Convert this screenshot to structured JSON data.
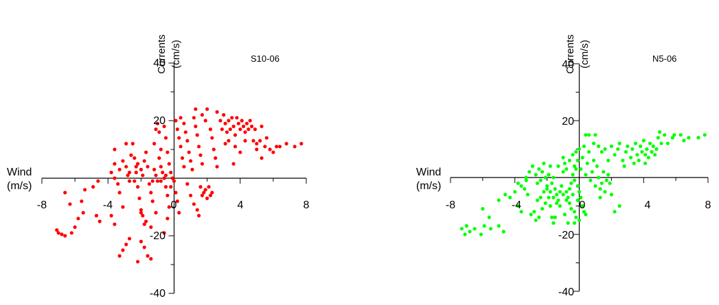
{
  "chart_data": [
    {
      "type": "scatter",
      "title": "S10-06",
      "xlabel": [
        "Wind",
        "(m/s)"
      ],
      "ylabel": [
        "Currents",
        "(cm/s)"
      ],
      "xlim": [
        -8,
        8
      ],
      "ylim": [
        -40,
        40
      ],
      "xticks": [
        "-8",
        "-4",
        "0",
        "4",
        "8"
      ],
      "yticks": [
        "40",
        "20",
        "-20",
        "-40"
      ],
      "color": "#ff0000",
      "points": [
        [
          -7.1,
          -18
        ],
        [
          -7.0,
          -19
        ],
        [
          -6.8,
          -19.5
        ],
        [
          -6.6,
          -20
        ],
        [
          -6.2,
          -19
        ],
        [
          -6.0,
          -17
        ],
        [
          -5.8,
          -14
        ],
        [
          -5.5,
          -12
        ],
        [
          -5.6,
          -8
        ],
        [
          -6.3,
          -9
        ],
        [
          -6.6,
          -5
        ],
        [
          -5.4,
          -4
        ],
        [
          -4.9,
          -3
        ],
        [
          -4.6,
          -1
        ],
        [
          -4.7,
          -13
        ],
        [
          -4.5,
          -15
        ],
        [
          -3.8,
          -13
        ],
        [
          -3.6,
          -16
        ],
        [
          -3.8,
          2
        ],
        [
          -3.6,
          0
        ],
        [
          -3.4,
          -2
        ],
        [
          -3.3,
          -5
        ],
        [
          -3.1,
          -10
        ],
        [
          -3.3,
          -27
        ],
        [
          -3.1,
          -25
        ],
        [
          -2.9,
          -23
        ],
        [
          -2.7,
          -21
        ],
        [
          -3.6,
          10
        ],
        [
          -3.6,
          5
        ],
        [
          -3.3,
          3
        ],
        [
          -3.1,
          6
        ],
        [
          -2.9,
          4
        ],
        [
          -2.8,
          1
        ],
        [
          -2.7,
          -1
        ],
        [
          -2.6,
          8
        ],
        [
          -2.5,
          12
        ],
        [
          -2.4,
          7
        ],
        [
          -2.3,
          4
        ],
        [
          -2.2,
          -3
        ],
        [
          -2.1,
          -7
        ],
        [
          -2.0,
          -11
        ],
        [
          -1.9,
          -13
        ],
        [
          -1.8,
          -16
        ],
        [
          -1.7,
          -15
        ],
        [
          -2.0,
          -22
        ],
        [
          -1.8,
          -24
        ],
        [
          -1.6,
          -27
        ],
        [
          -1.4,
          -28
        ],
        [
          -2.2,
          -29
        ],
        [
          -2.0,
          -12
        ],
        [
          -2.9,
          12
        ],
        [
          -2.7,
          2
        ],
        [
          -2.4,
          -1
        ],
        [
          -2.3,
          2
        ],
        [
          -2.2,
          5
        ],
        [
          -2.0,
          3
        ],
        [
          -1.9,
          1
        ],
        [
          -1.8,
          6
        ],
        [
          -1.7,
          9
        ],
        [
          -1.6,
          4
        ],
        [
          -1.5,
          -2
        ],
        [
          -1.4,
          -5
        ],
        [
          -1.3,
          -8
        ],
        [
          -1.2,
          12
        ],
        [
          -1.1,
          17
        ],
        [
          -1.0,
          19
        ],
        [
          -0.9,
          16
        ],
        [
          -1.2,
          3
        ],
        [
          -1.1,
          1
        ],
        [
          -1.0,
          -1
        ],
        [
          -0.9,
          7
        ],
        [
          -0.8,
          4
        ],
        [
          -0.7,
          2
        ],
        [
          -0.6,
          0
        ],
        [
          -0.5,
          -3
        ],
        [
          -0.4,
          -6
        ],
        [
          -0.3,
          -10
        ],
        [
          -0.4,
          -14
        ],
        [
          -0.6,
          -19
        ],
        [
          -1.1,
          -12
        ],
        [
          -1.4,
          -17
        ],
        [
          -0.8,
          10
        ],
        [
          -0.6,
          18
        ],
        [
          -0.5,
          14
        ],
        [
          -0.4,
          9
        ],
        [
          -0.3,
          5
        ],
        [
          -0.2,
          2
        ],
        [
          -0.1,
          0
        ],
        [
          0.0,
          -1
        ],
        [
          -0.2,
          -3
        ],
        [
          -0.5,
          1
        ],
        [
          -0.8,
          -1
        ],
        [
          -1.3,
          -1
        ],
        [
          0.1,
          20
        ],
        [
          0.2,
          17
        ],
        [
          0.3,
          14
        ],
        [
          0.4,
          11
        ],
        [
          0.5,
          7
        ],
        [
          0.6,
          4
        ],
        [
          0.1,
          -5
        ],
        [
          0.2,
          -8
        ],
        [
          0.3,
          -12
        ],
        [
          0.4,
          21
        ],
        [
          0.6,
          19
        ],
        [
          0.7,
          16
        ],
        [
          0.8,
          13
        ],
        [
          0.9,
          9
        ],
        [
          1.0,
          6
        ],
        [
          1.1,
          3
        ],
        [
          1.2,
          21
        ],
        [
          1.3,
          18
        ],
        [
          1.4,
          15
        ],
        [
          1.5,
          11
        ],
        [
          1.6,
          8
        ],
        [
          1.7,
          5
        ],
        [
          0.8,
          -2
        ],
        [
          1.0,
          -6
        ],
        [
          1.2,
          -9
        ],
        [
          1.5,
          -13
        ],
        [
          1.4,
          -11
        ],
        [
          1.6,
          -3
        ],
        [
          1.8,
          -5
        ],
        [
          1.3,
          24
        ],
        [
          1.7,
          22
        ],
        [
          1.9,
          20
        ],
        [
          2.0,
          24
        ],
        [
          2.2,
          17
        ],
        [
          2.3,
          14
        ],
        [
          2.4,
          10
        ],
        [
          2.5,
          7
        ],
        [
          2.6,
          4
        ],
        [
          2.2,
          -6
        ],
        [
          2.0,
          -7
        ],
        [
          2.3,
          -5
        ],
        [
          2.1,
          -3
        ],
        [
          1.9,
          -4
        ],
        [
          1.7,
          -6
        ],
        [
          2.6,
          23
        ],
        [
          2.8,
          20
        ],
        [
          2.9,
          17
        ],
        [
          3.0,
          22
        ],
        [
          3.1,
          19
        ],
        [
          3.2,
          16
        ],
        [
          3.3,
          20
        ],
        [
          3.4,
          17
        ],
        [
          3.5,
          21
        ],
        [
          3.6,
          18
        ],
        [
          3.7,
          15
        ],
        [
          3.8,
          21
        ],
        [
          3.9,
          19
        ],
        [
          4.0,
          17
        ],
        [
          4.1,
          20
        ],
        [
          4.2,
          18
        ],
        [
          4.3,
          16
        ],
        [
          4.4,
          19
        ],
        [
          4.5,
          17
        ],
        [
          4.6,
          20
        ],
        [
          4.7,
          18
        ],
        [
          3.3,
          13
        ],
        [
          3.7,
          11
        ],
        [
          3.1,
          12
        ],
        [
          3.6,
          5
        ],
        [
          4.0,
          9
        ],
        [
          4.3,
          13
        ],
        [
          4.9,
          17
        ],
        [
          5.0,
          12
        ],
        [
          5.3,
          18
        ],
        [
          5.0,
          10
        ],
        [
          5.3,
          7
        ],
        [
          5.2,
          13
        ],
        [
          5.6,
          14
        ],
        [
          5.8,
          10
        ],
        [
          6.0,
          9
        ],
        [
          6.2,
          11
        ],
        [
          6.4,
          11
        ],
        [
          6.8,
          12
        ],
        [
          7.3,
          11
        ],
        [
          7.7,
          12
        ],
        [
          5.5,
          11
        ],
        [
          4.8,
          13
        ]
      ]
    },
    {
      "type": "scatter",
      "title": "N5-06",
      "xlabel": [
        "Wind",
        "(m/s)"
      ],
      "ylabel": [
        "Currents",
        "(cm/s)"
      ],
      "xlim": [
        -8,
        8
      ],
      "ylim": [
        -40,
        40
      ],
      "xticks": [
        "-8",
        "-4",
        "0",
        "4",
        "8"
      ],
      "yticks": [
        "40",
        "20",
        "-20",
        "-40"
      ],
      "color": "#00ff00",
      "points": [
        [
          -7.3,
          -18
        ],
        [
          -7.1,
          -20
        ],
        [
          -7.0,
          -17
        ],
        [
          -6.8,
          -19
        ],
        [
          -6.5,
          -18
        ],
        [
          -6.1,
          -20
        ],
        [
          -5.9,
          -17
        ],
        [
          -5.5,
          -18
        ],
        [
          -5.0,
          -17
        ],
        [
          -4.7,
          -19
        ],
        [
          -5.6,
          -14
        ],
        [
          -6.0,
          -11
        ],
        [
          -5.0,
          -8
        ],
        [
          -4.6,
          -6
        ],
        [
          -4.3,
          -7
        ],
        [
          -4.0,
          -5
        ],
        [
          -3.8,
          -10
        ],
        [
          -3.6,
          -12
        ],
        [
          -3.8,
          -2
        ],
        [
          -3.6,
          -3
        ],
        [
          -3.4,
          -4
        ],
        [
          -3.3,
          0
        ],
        [
          -3.2,
          -6
        ],
        [
          -3.0,
          -13
        ],
        [
          -2.8,
          -12
        ],
        [
          -2.7,
          -15
        ],
        [
          -2.5,
          -14
        ],
        [
          -2.6,
          -8
        ],
        [
          -2.4,
          -7
        ],
        [
          -2.3,
          -11
        ],
        [
          -2.2,
          -5
        ],
        [
          -2.1,
          -9
        ],
        [
          -2.0,
          -3
        ],
        [
          -1.9,
          -7
        ],
        [
          -1.8,
          -10
        ],
        [
          -1.7,
          -14
        ],
        [
          -1.6,
          -16
        ],
        [
          -3.3,
          -1
        ],
        [
          -3.1,
          2
        ],
        [
          -2.9,
          4
        ],
        [
          -2.7,
          1
        ],
        [
          -2.6,
          -2
        ],
        [
          -2.5,
          3
        ],
        [
          -2.4,
          -1
        ],
        [
          -2.3,
          2
        ],
        [
          -2.2,
          5
        ],
        [
          -2.1,
          0
        ],
        [
          -2.0,
          -4
        ],
        [
          -1.9,
          1
        ],
        [
          -1.8,
          4
        ],
        [
          -1.7,
          -2
        ],
        [
          -1.6,
          0
        ],
        [
          -1.5,
          -4
        ],
        [
          -1.4,
          -6
        ],
        [
          -1.3,
          -8
        ],
        [
          -1.2,
          -10
        ],
        [
          -1.1,
          -3
        ],
        [
          -1.0,
          2
        ],
        [
          -0.9,
          5
        ],
        [
          -0.8,
          -5
        ],
        [
          -0.7,
          -7
        ],
        [
          -0.6,
          -9
        ],
        [
          -0.5,
          -11
        ],
        [
          -0.4,
          -6
        ],
        [
          -0.3,
          -16
        ],
        [
          -0.2,
          -14
        ],
        [
          -0.1,
          -8
        ],
        [
          -0.9,
          -13
        ],
        [
          -1.5,
          -14
        ],
        [
          -0.7,
          -16
        ],
        [
          -1.8,
          -5
        ],
        [
          -1.6,
          -7
        ],
        [
          -1.4,
          -9
        ],
        [
          -1.2,
          -5
        ],
        [
          -1.0,
          -6
        ],
        [
          -0.8,
          -8
        ],
        [
          -0.6,
          -4
        ],
        [
          -0.5,
          -2
        ],
        [
          -0.4,
          1
        ],
        [
          -0.3,
          -1
        ],
        [
          -0.2,
          3
        ],
        [
          -0.1,
          -3
        ],
        [
          0.0,
          -5
        ],
        [
          0.1,
          -7
        ],
        [
          0.2,
          -10
        ],
        [
          0.3,
          -12
        ],
        [
          0.4,
          -13
        ],
        [
          0.0,
          -15
        ],
        [
          -0.3,
          -12
        ],
        [
          -1.3,
          4
        ],
        [
          -1.0,
          7
        ],
        [
          -0.8,
          3
        ],
        [
          -0.6,
          6
        ],
        [
          -0.4,
          8
        ],
        [
          -0.3,
          4
        ],
        [
          -0.2,
          9
        ],
        [
          -0.1,
          6
        ],
        [
          0.0,
          10
        ],
        [
          0.1,
          3
        ],
        [
          0.2,
          7
        ],
        [
          0.3,
          11
        ],
        [
          0.4,
          1
        ],
        [
          0.5,
          5
        ],
        [
          0.6,
          9
        ],
        [
          0.7,
          -1
        ],
        [
          0.8,
          2
        ],
        [
          0.9,
          6
        ],
        [
          1.0,
          -3
        ],
        [
          1.1,
          4
        ],
        [
          1.2,
          0
        ],
        [
          1.3,
          -4
        ],
        [
          1.4,
          -2
        ],
        [
          1.5,
          2
        ],
        [
          1.6,
          -5
        ],
        [
          1.7,
          -1
        ],
        [
          1.8,
          1
        ],
        [
          1.9,
          -2
        ],
        [
          2.0,
          -6
        ],
        [
          2.2,
          -12
        ],
        [
          2.5,
          -10
        ],
        [
          1.3,
          -7
        ],
        [
          0.4,
          15
        ],
        [
          0.6,
          15
        ],
        [
          0.9,
          12
        ],
        [
          1.0,
          15
        ],
        [
          1.2,
          11
        ],
        [
          1.4,
          9
        ],
        [
          1.6,
          10
        ],
        [
          1.8,
          6
        ],
        [
          2.0,
          11
        ],
        [
          2.2,
          8
        ],
        [
          2.4,
          10
        ],
        [
          2.5,
          12
        ],
        [
          2.7,
          6
        ],
        [
          2.9,
          9
        ],
        [
          3.0,
          11
        ],
        [
          3.2,
          7
        ],
        [
          3.3,
          10
        ],
        [
          3.5,
          12
        ],
        [
          3.6,
          8
        ],
        [
          3.7,
          6
        ],
        [
          3.8,
          11
        ],
        [
          3.9,
          9
        ],
        [
          4.0,
          13
        ],
        [
          4.1,
          8
        ],
        [
          4.2,
          10
        ],
        [
          4.3,
          7
        ],
        [
          4.4,
          12
        ],
        [
          4.5,
          9
        ],
        [
          4.6,
          11
        ],
        [
          4.7,
          8
        ],
        [
          4.8,
          10
        ],
        [
          4.9,
          14
        ],
        [
          5.0,
          16
        ],
        [
          5.1,
          12
        ],
        [
          5.3,
          15
        ],
        [
          5.5,
          12
        ],
        [
          5.8,
          14
        ],
        [
          5.9,
          15
        ],
        [
          6.3,
          15
        ],
        [
          6.5,
          13
        ],
        [
          6.8,
          14
        ],
        [
          7.4,
          14
        ],
        [
          7.8,
          15
        ],
        [
          2.8,
          4
        ],
        [
          3.4,
          5
        ],
        [
          4.1,
          5
        ]
      ]
    }
  ]
}
